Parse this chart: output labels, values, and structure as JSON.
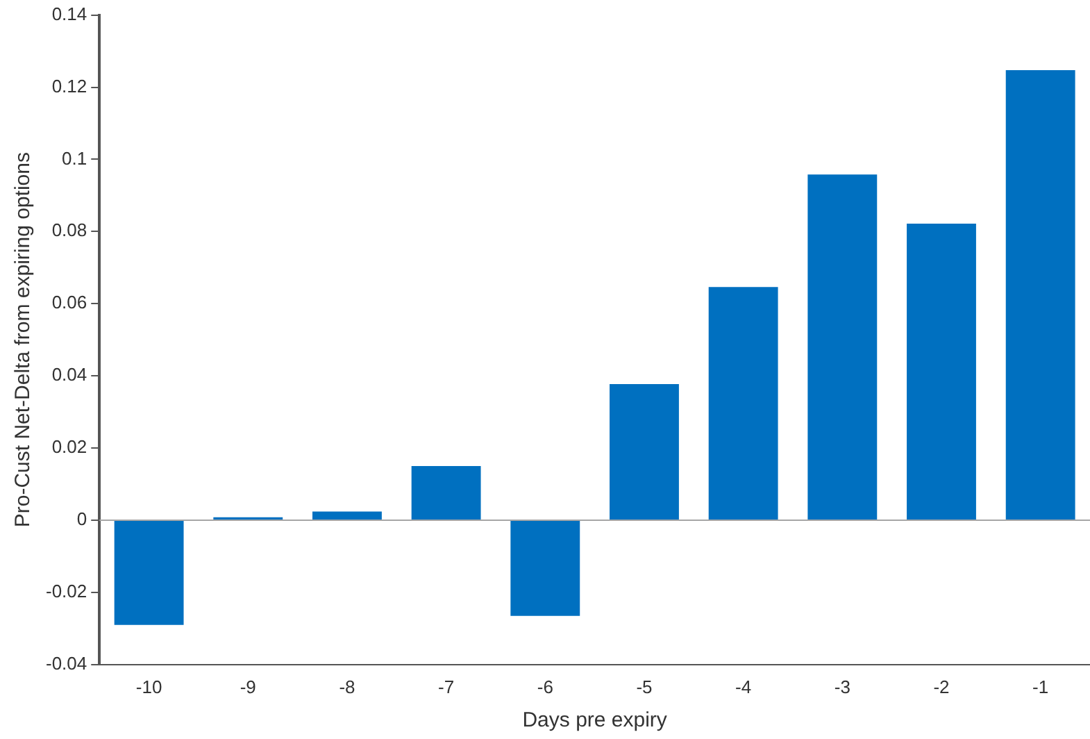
{
  "chart_data": {
    "type": "bar",
    "xlabel": "Days pre expiry",
    "ylabel": "Pro-Cust Net-Delta from expiring options",
    "categories": [
      "-10",
      "-9",
      "-8",
      "-7",
      "-6",
      "-5",
      "-4",
      "-3",
      "-2",
      "-1"
    ],
    "values": [
      -0.029,
      0.0008,
      0.0024,
      0.015,
      -0.0265,
      0.0377,
      0.0646,
      0.0958,
      0.0822,
      0.1247
    ],
    "color": "#0070c0",
    "ylim": [
      -0.04,
      0.14
    ],
    "yticks": [
      -0.04,
      -0.02,
      0,
      0.02,
      0.04,
      0.06,
      0.08,
      0.1,
      0.12,
      0.14
    ],
    "ref_lines": [
      {
        "axis": "y",
        "value": 0,
        "color": "#a6a6a6"
      }
    ],
    "grid": false,
    "legend": false
  }
}
